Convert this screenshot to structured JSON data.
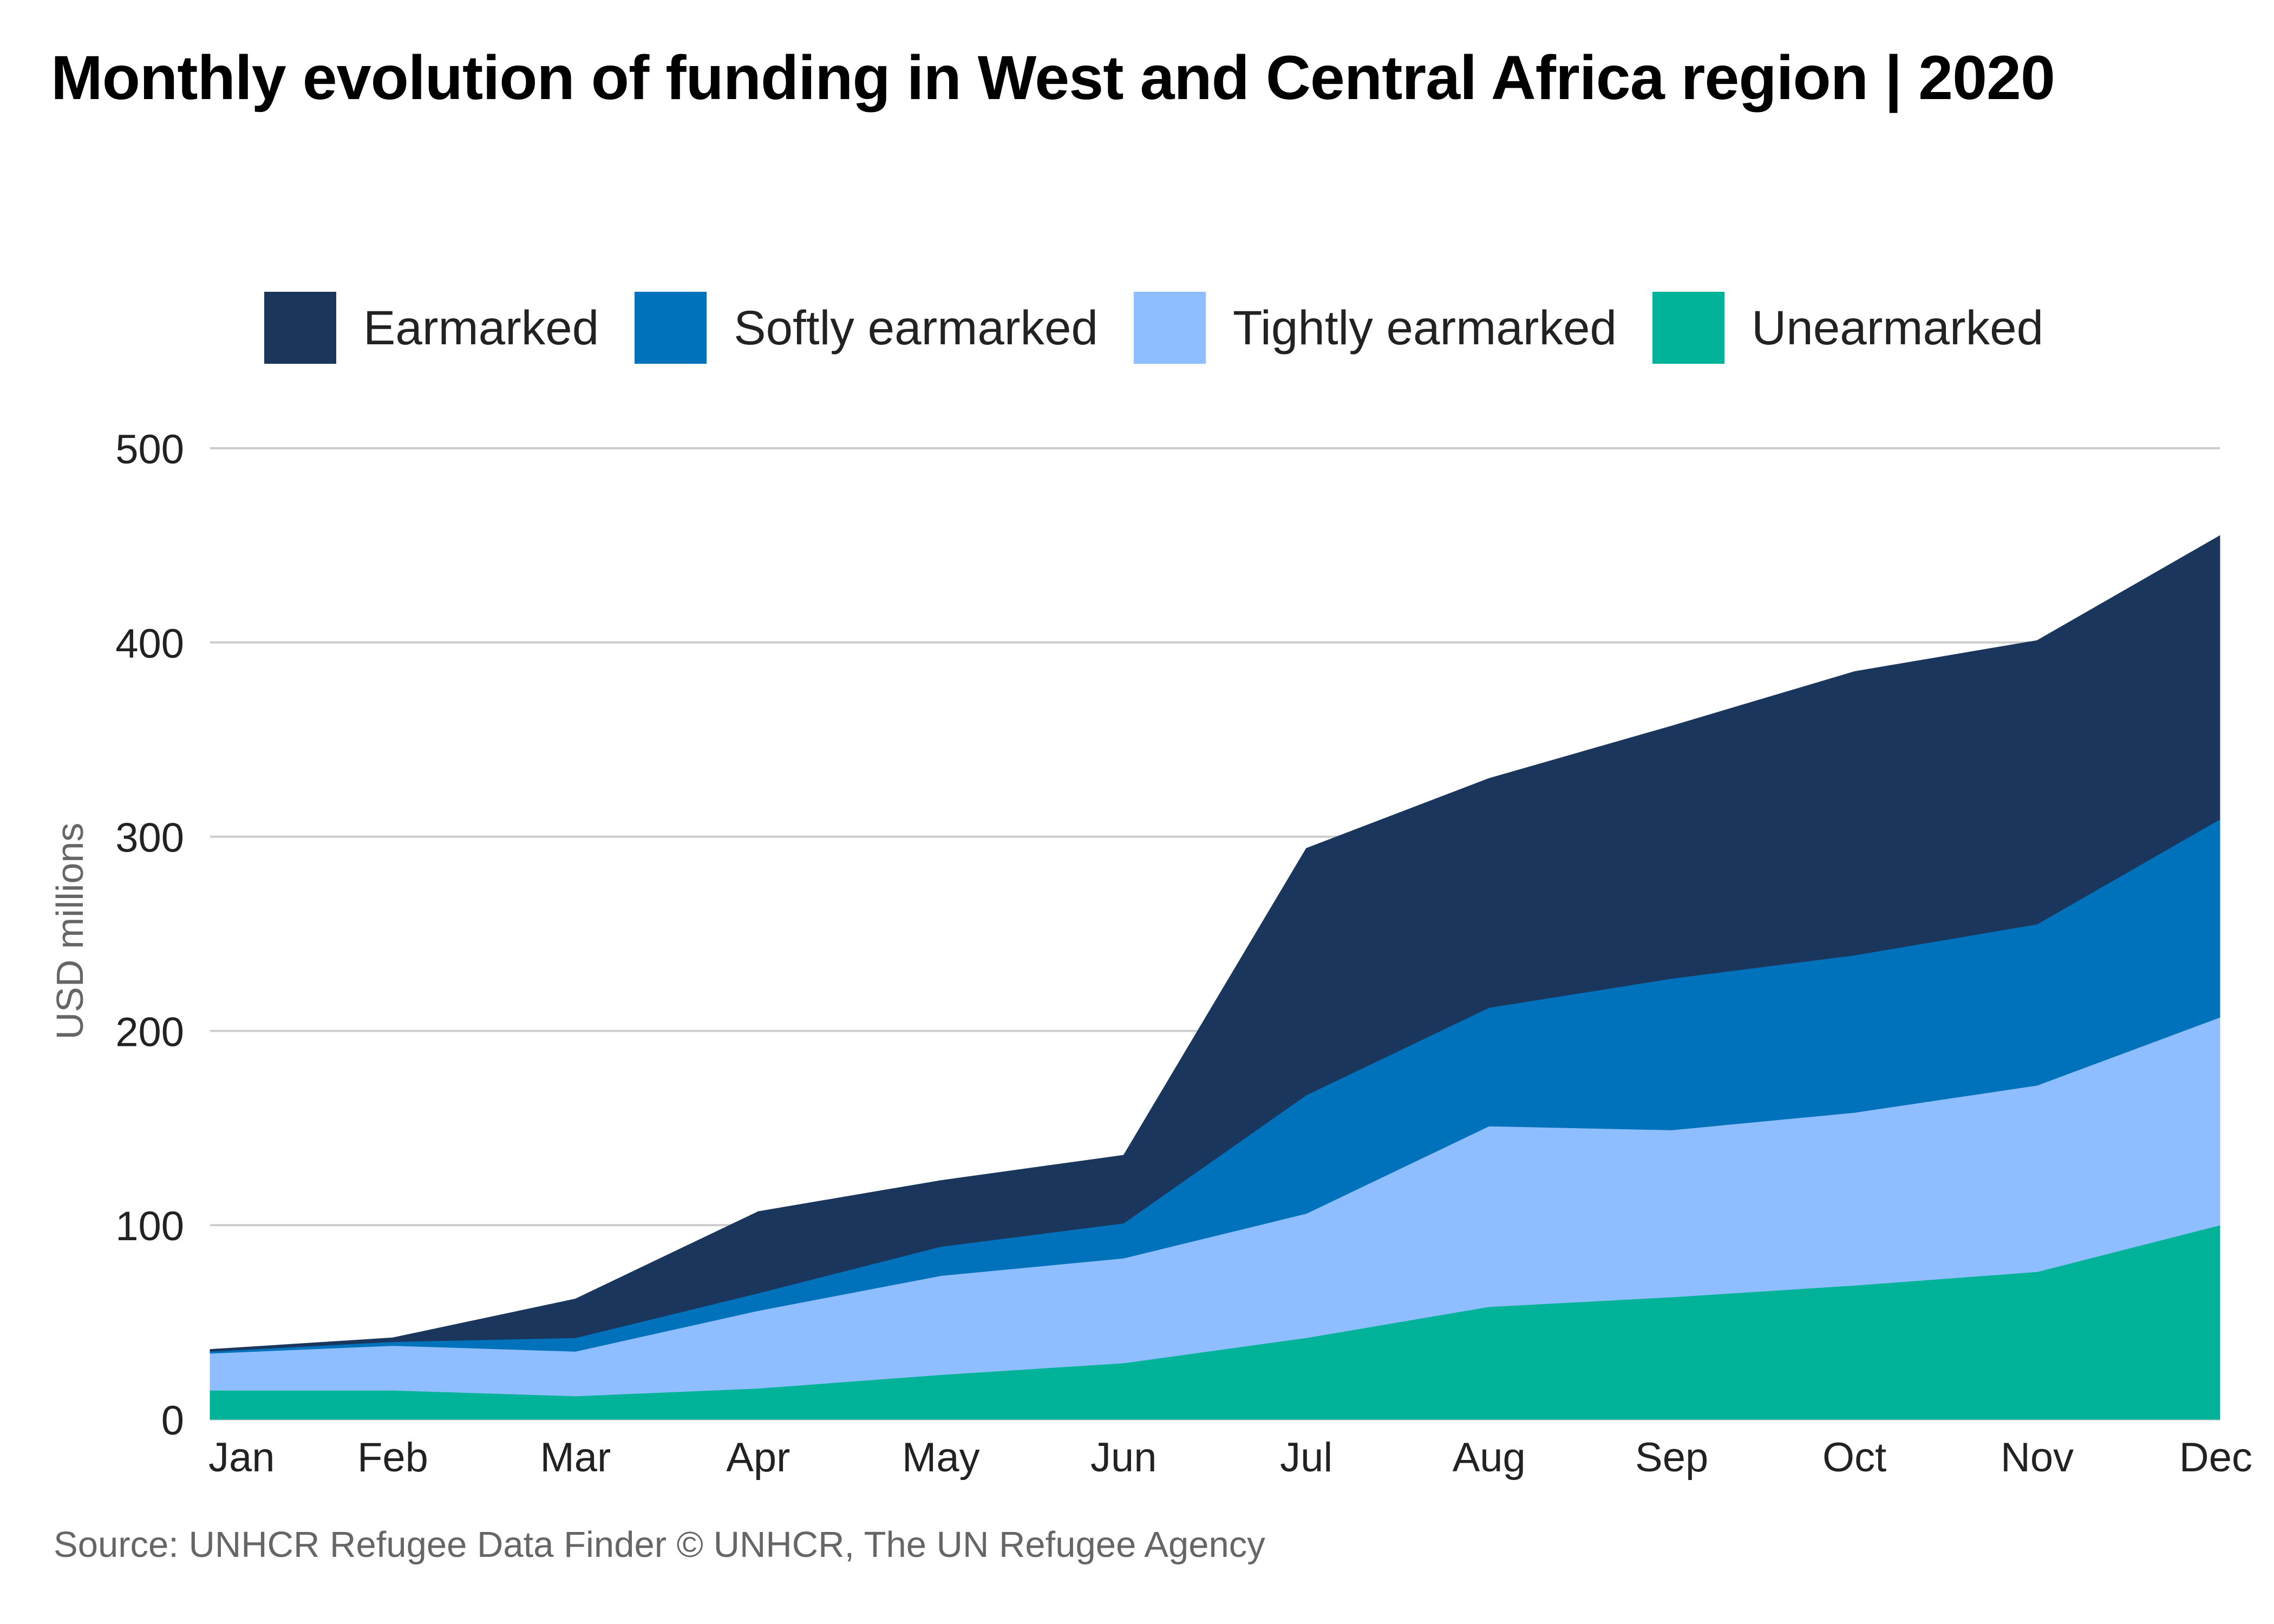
{
  "title": "Monthly evolution of funding in West and Central Africa region | 2020",
  "source": "Source: UNHCR Refugee Data Finder © UNHCR, The UN Refugee Agency",
  "colors": {
    "earmarked": "#1a365d",
    "softly_earmarked": "#0072bc",
    "tightly_earmarked": "#8ebeff",
    "unearmarked": "#00b398",
    "gridline": "#cccccc",
    "axis_text": "#222222",
    "ylabel_text": "#666666"
  },
  "chart_data": {
    "type": "area",
    "stacked": true,
    "title": "Monthly evolution of funding in West and Central Africa region | 2020",
    "xlabel": "",
    "ylabel": "USD millions",
    "ylim": [
      0,
      500
    ],
    "yticks": [
      0,
      100,
      200,
      300,
      400,
      500
    ],
    "grid": true,
    "legend_position": "top",
    "categories": [
      "Jan",
      "Feb",
      "Mar",
      "Apr",
      "May",
      "Jun",
      "Jul",
      "Aug",
      "Sep",
      "Oct",
      "Nov",
      "Dec"
    ],
    "series": [
      {
        "name": "Unearmarked",
        "color": "#00b398",
        "values": [
          15,
          15,
          12,
          16,
          23,
          29,
          42,
          58,
          63,
          69,
          76,
          100
        ]
      },
      {
        "name": "Tightly earmarked",
        "color": "#8ebeff",
        "values": [
          19,
          23,
          23,
          40,
          51,
          54,
          64,
          93,
          86,
          89,
          96,
          107
        ]
      },
      {
        "name": "Softly earmarked",
        "color": "#0072bc",
        "values": [
          1,
          2,
          7,
          9,
          15,
          18,
          61,
          61,
          78,
          81,
          83,
          102
        ]
      },
      {
        "name": "Earmarked",
        "color": "#1a365d",
        "values": [
          1,
          2,
          20,
          42,
          34,
          35,
          127,
          118,
          130,
          146,
          146,
          146
        ]
      }
    ]
  }
}
